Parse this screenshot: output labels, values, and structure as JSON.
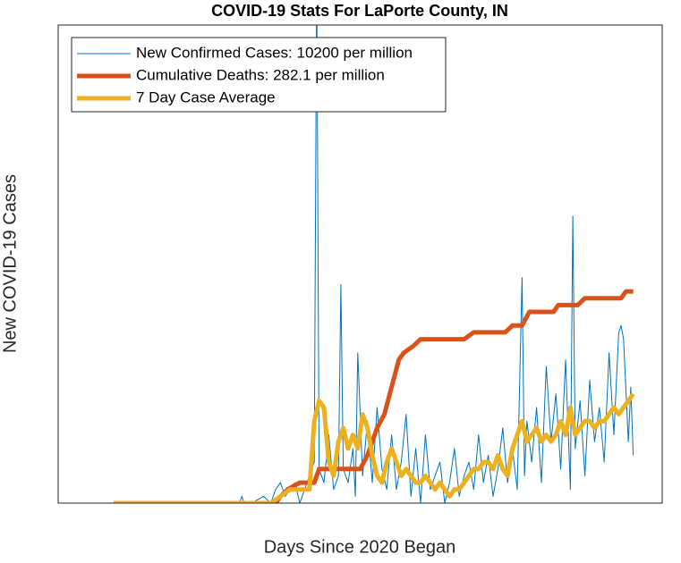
{
  "chart_data": {
    "type": "line",
    "title": "COVID-19 Stats For LaPorte County, IN",
    "xlabel": "Days Since 2020 Began",
    "ylabel": "New COVID-19 Cases",
    "xlim": [
      0,
      250
    ],
    "xticks": [
      0,
      50,
      100,
      150,
      200,
      250
    ],
    "ylim": [
      0,
      70
    ],
    "yticks": [
      0,
      10,
      20,
      30,
      40,
      50,
      60,
      70
    ],
    "grid": true,
    "legend": "upper left",
    "series": [
      {
        "name": "New Confirmed Cases: 10200 per million",
        "color": "#0072BD",
        "width": 1,
        "x": [
          23,
          75,
          76,
          77,
          80,
          85,
          88,
          90,
          92,
          94,
          96,
          98,
          100,
          102,
          104,
          106,
          107,
          108,
          110,
          112,
          114,
          116,
          117,
          118,
          120,
          122,
          123,
          124,
          126,
          128,
          130,
          132,
          134,
          136,
          138,
          140,
          142,
          144,
          146,
          148,
          150,
          152,
          154,
          156,
          158,
          160,
          162,
          164,
          166,
          168,
          170,
          172,
          174,
          176,
          178,
          180,
          182,
          184,
          186,
          188,
          190,
          192,
          193,
          194,
          196,
          198,
          200,
          202,
          204,
          206,
          208,
          210,
          212,
          213,
          214,
          216,
          218,
          220,
          222,
          224,
          226,
          228,
          230,
          232,
          233,
          234,
          236,
          237,
          238
        ],
        "values": [
          0,
          0,
          1,
          0,
          0,
          1,
          0,
          2,
          3,
          1,
          2,
          3,
          0,
          2,
          4,
          6,
          78,
          5,
          3,
          10,
          2,
          4,
          32,
          5,
          3,
          8,
          1,
          22,
          4,
          12,
          3,
          14,
          5,
          2,
          10,
          2,
          6,
          13,
          1,
          8,
          0,
          10,
          2,
          4,
          6,
          0,
          3,
          8,
          1,
          4,
          6,
          2,
          10,
          3,
          7,
          1,
          5,
          11,
          3,
          8,
          2,
          33,
          4,
          12,
          6,
          14,
          3,
          20,
          9,
          16,
          5,
          21,
          2,
          42,
          8,
          15,
          4,
          18,
          9,
          14,
          6,
          22,
          10,
          25,
          26,
          24,
          9,
          17,
          7
        ]
      },
      {
        "name": "Cumulative Deaths: 282.1 per million",
        "color": "#D95319",
        "width": 5,
        "x": [
          23,
          90,
          92,
          95,
          100,
          106,
          108,
          125,
          128,
          132,
          135,
          138,
          141,
          143,
          147,
          150,
          152,
          168,
          172,
          185,
          188,
          192,
          195,
          205,
          207,
          215,
          218,
          233,
          235,
          238
        ],
        "values": [
          0,
          0,
          1,
          2,
          3,
          3,
          5,
          5,
          7,
          11,
          13,
          17,
          21,
          22,
          23,
          24,
          24,
          24,
          25,
          25,
          26,
          26,
          28,
          28,
          29,
          29,
          30,
          30,
          31,
          31
        ]
      },
      {
        "name": "7 Day Case Average",
        "color": "#EDB120",
        "width": 5,
        "x": [
          23,
          88,
          92,
          96,
          100,
          104,
          106,
          108,
          110,
          112,
          114,
          116,
          118,
          120,
          122,
          124,
          126,
          128,
          130,
          132,
          134,
          136,
          138,
          140,
          142,
          144,
          146,
          148,
          150,
          152,
          154,
          156,
          158,
          160,
          162,
          164,
          166,
          168,
          170,
          172,
          174,
          176,
          178,
          180,
          182,
          184,
          186,
          188,
          190,
          192,
          194,
          196,
          198,
          200,
          202,
          204,
          206,
          208,
          210,
          212,
          214,
          216,
          218,
          220,
          222,
          224,
          226,
          228,
          230,
          232,
          234,
          236,
          238
        ],
        "values": [
          0,
          0,
          1,
          2,
          2,
          2,
          12,
          15,
          14,
          6,
          4,
          9,
          11,
          8,
          10,
          8,
          13,
          11,
          7,
          4,
          3,
          6,
          8,
          6,
          4,
          5,
          4,
          3,
          3,
          4,
          3,
          2,
          3,
          2,
          1,
          2,
          2,
          3,
          4,
          5,
          5,
          6,
          6,
          5,
          7,
          5,
          4,
          8,
          10,
          12,
          9,
          10,
          11,
          9,
          10,
          9,
          10,
          12,
          10,
          14,
          10,
          11,
          12,
          12,
          11,
          12,
          12,
          13,
          14,
          13,
          14,
          15,
          16
        ]
      }
    ]
  }
}
